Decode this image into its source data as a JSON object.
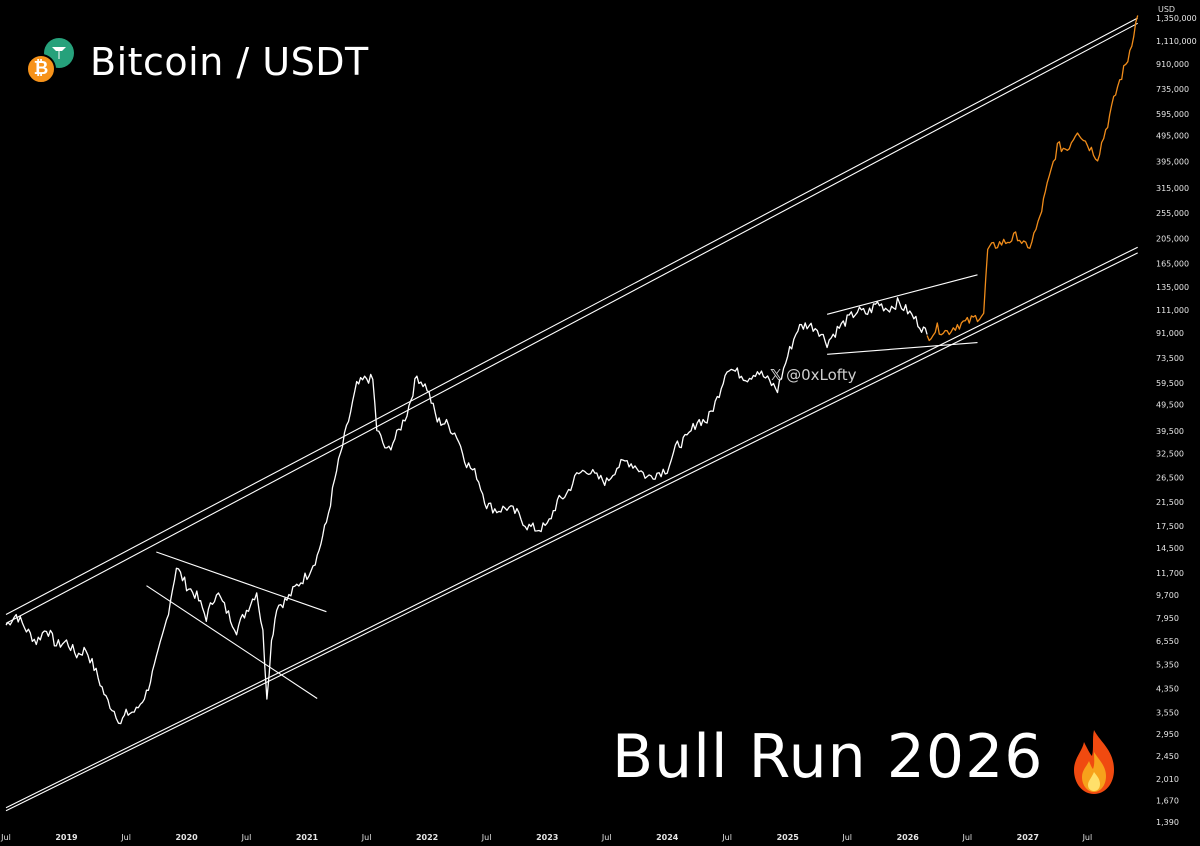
{
  "header": {
    "pair": "Bitcoin / USDT",
    "btc_symbol": "₿",
    "usdt_icon": "usdt-icon",
    "btc_icon": "bitcoin-icon"
  },
  "headline": "Bull Run 2026",
  "headline_icon": "flame-icon",
  "watermark": {
    "platform_icon": "x-icon",
    "glyph": "𝕏",
    "handle": "@0xLofty"
  },
  "colors": {
    "background": "#000000",
    "price": "#ffffff",
    "projection": "#f08c1a",
    "accent_btc": "#f7931a",
    "accent_usdt": "#26a17b"
  },
  "chart_data": {
    "type": "line",
    "unit": "USD",
    "yscale": "log",
    "ylim": [
      1390,
      1350000
    ],
    "xlim": [
      "2018-07-01",
      "2027-10-01"
    ],
    "grid": false,
    "y_ticks": [
      "1,350,000",
      "1,110,000",
      "910,000",
      "735,000",
      "595,000",
      "495,000",
      "395,000",
      "315,000",
      "255,000",
      "205,000",
      "165,000",
      "135,000",
      "111,000",
      "91,000",
      "73,500",
      "59,500",
      "49,500",
      "39,500",
      "32,500",
      "26,500",
      "21,500",
      "17,500",
      "14,500",
      "11,700",
      "9,700",
      "7,950",
      "6,550",
      "5,350",
      "4,350",
      "3,550",
      "2,950",
      "2,450",
      "2,010",
      "1,670",
      "1,390"
    ],
    "x_ticks": [
      {
        "label": "Jul",
        "date": "2018-07-01"
      },
      {
        "label": "2019",
        "date": "2019-01-01"
      },
      {
        "label": "Jul",
        "date": "2019-07-01"
      },
      {
        "label": "2020",
        "date": "2020-01-01"
      },
      {
        "label": "Jul",
        "date": "2020-07-01"
      },
      {
        "label": "2021",
        "date": "2021-01-01"
      },
      {
        "label": "Jul",
        "date": "2021-07-01"
      },
      {
        "label": "2022",
        "date": "2022-01-01"
      },
      {
        "label": "Jul",
        "date": "2022-07-01"
      },
      {
        "label": "2023",
        "date": "2023-01-01"
      },
      {
        "label": "Jul",
        "date": "2023-07-01"
      },
      {
        "label": "2024",
        "date": "2024-01-01"
      },
      {
        "label": "Jul",
        "date": "2024-07-01"
      },
      {
        "label": "2025",
        "date": "2025-01-01"
      },
      {
        "label": "Jul",
        "date": "2025-07-01"
      },
      {
        "label": "2026",
        "date": "2026-01-01"
      },
      {
        "label": "Jul",
        "date": "2026-07-01"
      },
      {
        "label": "2027",
        "date": "2027-01-01"
      },
      {
        "label": "Jul",
        "date": "2027-07-01"
      }
    ],
    "series": [
      {
        "role": "price",
        "style": "white",
        "points": [
          [
            "2018-07-01",
            7500
          ],
          [
            "2018-08-01",
            8200
          ],
          [
            "2018-09-01",
            7200
          ],
          [
            "2018-10-01",
            6500
          ],
          [
            "2018-11-01",
            7300
          ],
          [
            "2018-12-01",
            6300
          ],
          [
            "2019-01-01",
            6500
          ],
          [
            "2019-02-01",
            5800
          ],
          [
            "2019-03-01",
            6100
          ],
          [
            "2019-04-01",
            5000
          ],
          [
            "2019-05-01",
            4000
          ],
          [
            "2019-06-01",
            3500
          ],
          [
            "2019-06-15",
            3250
          ],
          [
            "2019-07-01",
            3500
          ],
          [
            "2019-08-01",
            3600
          ],
          [
            "2019-09-01",
            4200
          ],
          [
            "2019-10-01",
            5500
          ],
          [
            "2019-11-01",
            7800
          ],
          [
            "2019-12-01",
            12300
          ],
          [
            "2020-01-01",
            10500
          ],
          [
            "2020-02-01",
            9600
          ],
          [
            "2020-03-01",
            8000
          ],
          [
            "2020-04-01",
            10000
          ],
          [
            "2020-05-01",
            8500
          ],
          [
            "2020-06-01",
            7200
          ],
          [
            "2020-07-01",
            8500
          ],
          [
            "2020-08-01",
            10000
          ],
          [
            "2020-08-20",
            7000
          ],
          [
            "2020-09-01",
            4100
          ],
          [
            "2020-09-15",
            6500
          ],
          [
            "2020-10-01",
            8800
          ],
          [
            "2020-11-01",
            9300
          ],
          [
            "2020-12-01",
            10500
          ],
          [
            "2021-01-01",
            11500
          ],
          [
            "2021-02-01",
            13500
          ],
          [
            "2021-03-01",
            18000
          ],
          [
            "2021-04-01",
            28000
          ],
          [
            "2021-05-01",
            40000
          ],
          [
            "2021-06-01",
            58000
          ],
          [
            "2021-07-01",
            62000
          ],
          [
            "2021-07-20",
            61000
          ],
          [
            "2021-08-01",
            40000
          ],
          [
            "2021-09-01",
            33000
          ],
          [
            "2021-10-01",
            38000
          ],
          [
            "2021-11-01",
            46000
          ],
          [
            "2021-12-01",
            63000
          ],
          [
            "2022-01-01",
            57000
          ],
          [
            "2022-02-01",
            43000
          ],
          [
            "2022-03-01",
            42000
          ],
          [
            "2022-04-01",
            38000
          ],
          [
            "2022-05-01",
            30000
          ],
          [
            "2022-06-01",
            27000
          ],
          [
            "2022-07-01",
            21000
          ],
          [
            "2022-08-01",
            20000
          ],
          [
            "2022-09-01",
            20500
          ],
          [
            "2022-10-01",
            19500
          ],
          [
            "2022-11-01",
            17500
          ],
          [
            "2022-12-01",
            17000
          ],
          [
            "2023-01-01",
            17500
          ],
          [
            "2023-02-01",
            21500
          ],
          [
            "2023-03-01",
            23000
          ],
          [
            "2023-04-01",
            27000
          ],
          [
            "2023-05-01",
            28500
          ],
          [
            "2023-06-01",
            26500
          ],
          [
            "2023-07-01",
            25500
          ],
          [
            "2023-08-01",
            29000
          ],
          [
            "2023-09-01",
            30500
          ],
          [
            "2023-10-01",
            29000
          ],
          [
            "2023-11-01",
            26500
          ],
          [
            "2023-12-01",
            27500
          ],
          [
            "2024-01-01",
            28500
          ],
          [
            "2024-02-01",
            35000
          ],
          [
            "2024-03-01",
            37000
          ],
          [
            "2024-04-01",
            43000
          ],
          [
            "2024-05-01",
            43000
          ],
          [
            "2024-06-01",
            52000
          ],
          [
            "2024-07-01",
            68000
          ],
          [
            "2024-08-01",
            65000
          ],
          [
            "2024-09-01",
            62000
          ],
          [
            "2024-10-01",
            66000
          ],
          [
            "2024-11-01",
            61000
          ],
          [
            "2024-12-01",
            56000
          ],
          [
            "2025-01-01",
            75000
          ],
          [
            "2025-02-01",
            95000
          ],
          [
            "2025-03-01",
            98000
          ],
          [
            "2025-04-01",
            95000
          ],
          [
            "2025-05-01",
            84000
          ],
          [
            "2025-06-01",
            94000
          ],
          [
            "2025-07-01",
            102000
          ],
          [
            "2025-08-01",
            110000
          ],
          [
            "2025-09-01",
            108000
          ],
          [
            "2025-10-01",
            118000
          ],
          [
            "2025-11-01",
            112000
          ],
          [
            "2025-12-01",
            118000
          ],
          [
            "2026-01-01",
            110000
          ],
          [
            "2026-02-01",
            100000
          ],
          [
            "2026-03-01",
            90000
          ]
        ]
      },
      {
        "role": "projection",
        "style": "orange",
        "points": [
          [
            "2026-03-01",
            88000
          ],
          [
            "2026-04-01",
            95000
          ],
          [
            "2026-05-01",
            92000
          ],
          [
            "2026-06-01",
            98000
          ],
          [
            "2026-07-01",
            100000
          ],
          [
            "2026-08-01",
            105000
          ],
          [
            "2026-08-20",
            108000
          ],
          [
            "2026-09-01",
            185000
          ],
          [
            "2026-10-01",
            195000
          ],
          [
            "2026-11-01",
            200000
          ],
          [
            "2026-12-01",
            210000
          ],
          [
            "2027-01-01",
            185000
          ],
          [
            "2027-02-01",
            230000
          ],
          [
            "2027-03-01",
            320000
          ],
          [
            "2027-04-01",
            450000
          ],
          [
            "2027-05-01",
            440000
          ],
          [
            "2027-06-01",
            520000
          ],
          [
            "2027-07-01",
            460000
          ],
          [
            "2027-08-01",
            410000
          ],
          [
            "2027-09-01",
            550000
          ],
          [
            "2027-10-01",
            750000
          ],
          [
            "2027-11-01",
            950000
          ],
          [
            "2027-12-01",
            1380000
          ]
        ]
      }
    ],
    "trendlines": [
      {
        "name": "channel-upper-1",
        "from": [
          "2018-07-01",
          8200
        ],
        "to": [
          "2027-12-01",
          1350000
        ]
      },
      {
        "name": "channel-upper-2",
        "from": [
          "2018-07-01",
          7600
        ],
        "to": [
          "2027-12-01",
          1290000
        ]
      },
      {
        "name": "channel-lower-1",
        "from": [
          "2018-07-01",
          1570
        ],
        "to": [
          "2027-12-01",
          190000
        ]
      },
      {
        "name": "channel-lower-2",
        "from": [
          "2018-07-01",
          1530
        ],
        "to": [
          "2027-12-01",
          181000
        ]
      },
      {
        "name": "wedge-upper",
        "from": [
          "2019-10-01",
          14000
        ],
        "to": [
          "2021-03-01",
          8400
        ]
      },
      {
        "name": "wedge-lower",
        "from": [
          "2019-09-01",
          10500
        ],
        "to": [
          "2021-02-01",
          4000
        ]
      },
      {
        "name": "range-upper",
        "from": [
          "2025-05-01",
          107000
        ],
        "to": [
          "2026-08-01",
          150000
        ]
      },
      {
        "name": "range-lower",
        "from": [
          "2025-05-01",
          76000
        ],
        "to": [
          "2026-08-01",
          84000
        ]
      }
    ]
  }
}
